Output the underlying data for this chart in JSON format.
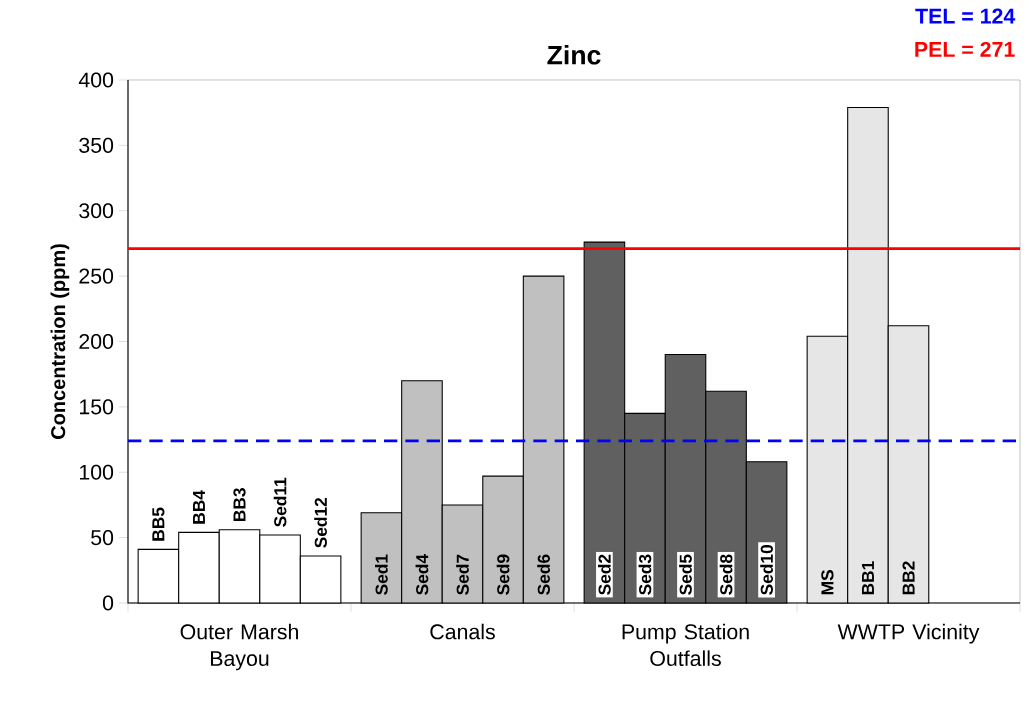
{
  "chart_data": {
    "type": "bar",
    "title": "Zinc",
    "ylabel": "Concentration (ppm)",
    "categories": [
      "BB5",
      "BB4",
      "BB3",
      "Sed11",
      "Sed12",
      "Sed1",
      "Sed4",
      "Sed7",
      "Sed9",
      "Sed6",
      "Sed2",
      "Sed3",
      "Sed5",
      "Sed8",
      "Sed10",
      "MS",
      "BB1",
      "BB2"
    ],
    "series": [
      {
        "name": "Outer Marsh Bayou",
        "color": "#ffffff",
        "values": [
          41,
          54,
          56,
          52,
          36,
          null,
          null,
          null,
          null,
          null,
          null,
          null,
          null,
          null,
          null,
          null,
          null,
          null
        ]
      },
      {
        "name": "Canals",
        "color": "#c0c0c0",
        "values": [
          null,
          null,
          null,
          null,
          null,
          69,
          170,
          75,
          97,
          250,
          null,
          null,
          null,
          null,
          null,
          null,
          null,
          null
        ]
      },
      {
        "name": "Pump Station Outfalls",
        "color": "#606060",
        "values": [
          null,
          null,
          null,
          null,
          null,
          null,
          null,
          null,
          null,
          null,
          276,
          145,
          190,
          162,
          108,
          null,
          null,
          null
        ]
      },
      {
        "name": "WWTP Vicinity",
        "color": "#e6e6e6",
        "values": [
          null,
          null,
          null,
          null,
          null,
          null,
          null,
          null,
          null,
          null,
          null,
          null,
          null,
          null,
          null,
          204,
          379,
          212
        ]
      }
    ],
    "ylim": [
      0,
      400
    ],
    "yticks": [
      0,
      50,
      100,
      150,
      200,
      250,
      300,
      350,
      400
    ],
    "ref_lines": [
      {
        "axis": "y",
        "value": 124,
        "label": "TEL = 124",
        "color": "#0000ff",
        "line_style": "dashed"
      },
      {
        "axis": "y",
        "value": 271,
        "label": "PEL = 271",
        "color": "#ff0000",
        "line_style": "solid"
      }
    ],
    "grid": false
  }
}
